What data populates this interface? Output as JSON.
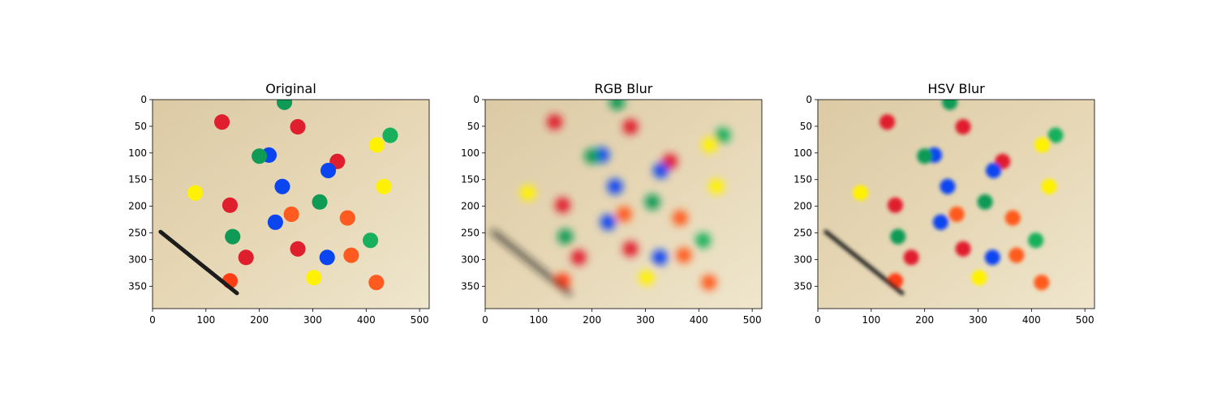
{
  "figure": {
    "panels": [
      {
        "title": "Original",
        "blur": 0,
        "rgb_style": true
      },
      {
        "title": "RGB Blur",
        "blur": 5,
        "rgb_style": true
      },
      {
        "title": "HSV Blur",
        "blur": 2.5,
        "rgb_style": false
      }
    ],
    "x_ticks": [
      "0",
      "100",
      "200",
      "300",
      "400",
      "500"
    ],
    "y_ticks": [
      "0",
      "50",
      "100",
      "150",
      "200",
      "250",
      "300",
      "350"
    ],
    "image_extent": {
      "width": 518,
      "height": 392
    },
    "background_color": "#e6d7b5",
    "discs": [
      {
        "x": 247,
        "y": 5,
        "color": "#0f9a55"
      },
      {
        "x": 130,
        "y": 42,
        "color": "#e01f2e"
      },
      {
        "x": 272,
        "y": 51,
        "color": "#e01f2e"
      },
      {
        "x": 445,
        "y": 67,
        "color": "#18b05c"
      },
      {
        "x": 420,
        "y": 85,
        "color": "#fff200"
      },
      {
        "x": 218,
        "y": 104,
        "color": "#0b45f0"
      },
      {
        "x": 200,
        "y": 106,
        "color": "#0f9a55"
      },
      {
        "x": 346,
        "y": 116,
        "color": "#e01f2e"
      },
      {
        "x": 329,
        "y": 133,
        "color": "#0b45f0"
      },
      {
        "x": 243,
        "y": 163,
        "color": "#0b45f0"
      },
      {
        "x": 433,
        "y": 163,
        "color": "#fff200"
      },
      {
        "x": 80,
        "y": 175,
        "color": "#fff200"
      },
      {
        "x": 313,
        "y": 192,
        "color": "#0f9a55"
      },
      {
        "x": 145,
        "y": 198,
        "color": "#e01f2e"
      },
      {
        "x": 260,
        "y": 215,
        "color": "#ff5a1f"
      },
      {
        "x": 365,
        "y": 222,
        "color": "#ff5a1f"
      },
      {
        "x": 230,
        "y": 230,
        "color": "#0b45f0"
      },
      {
        "x": 150,
        "y": 257,
        "color": "#0f9a55"
      },
      {
        "x": 408,
        "y": 264,
        "color": "#18b05c"
      },
      {
        "x": 272,
        "y": 280,
        "color": "#e01f2e"
      },
      {
        "x": 175,
        "y": 296,
        "color": "#e01f2e"
      },
      {
        "x": 327,
        "y": 296,
        "color": "#0b45f0"
      },
      {
        "x": 372,
        "y": 292,
        "color": "#ff5a1f"
      },
      {
        "x": 302,
        "y": 334,
        "color": "#fff200"
      },
      {
        "x": 145,
        "y": 340,
        "color": "#ff3c14"
      },
      {
        "x": 419,
        "y": 343,
        "color": "#ff5a1f"
      }
    ],
    "pen": {
      "x1": 15,
      "y1": 248,
      "x2": 158,
      "y2": 363,
      "color": "#1c1c1c"
    }
  }
}
